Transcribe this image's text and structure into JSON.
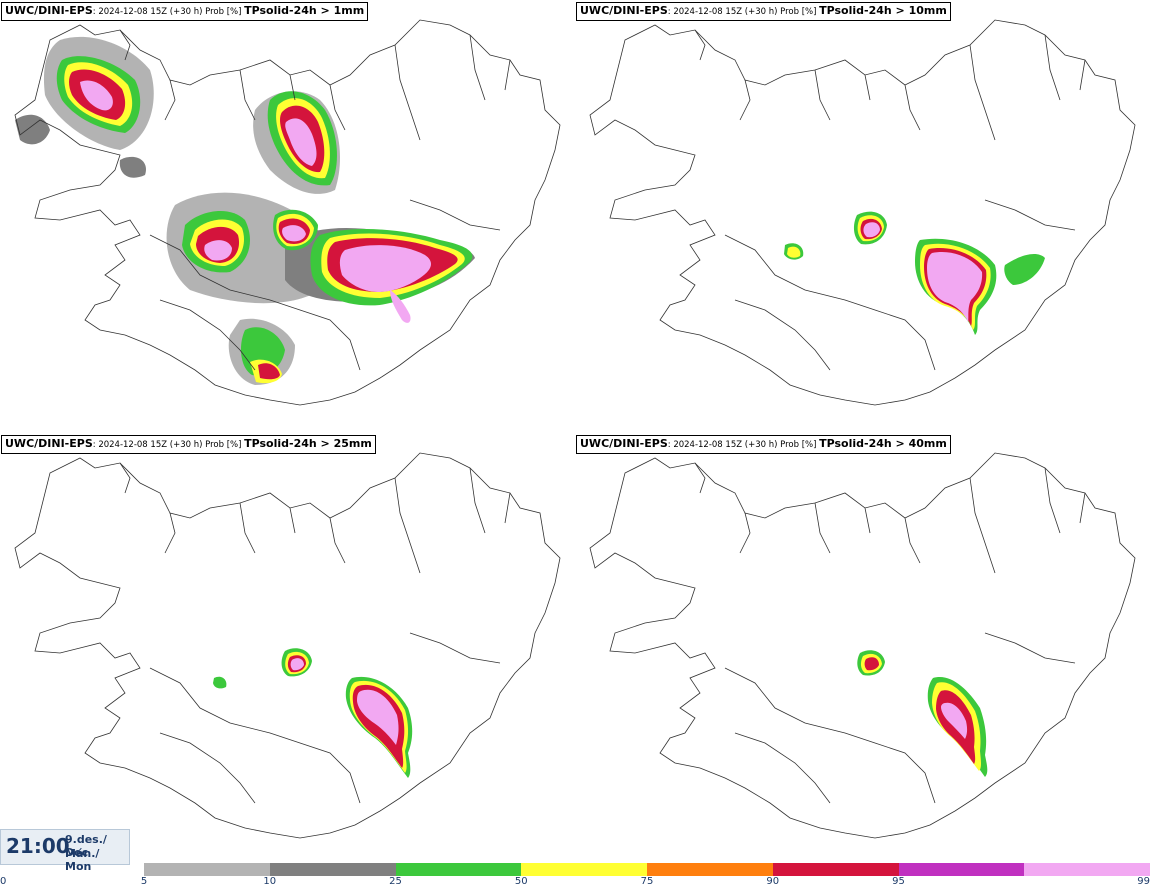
{
  "panels": [
    {
      "model": "UWC/DINI-EPS",
      "meta": ": 2024-12-08 15Z (+30 h) Prob [%] ",
      "field": "TPsolid-24h > 1mm"
    },
    {
      "model": "UWC/DINI-EPS",
      "meta": ": 2024-12-08 15Z (+30 h) Prob [%] ",
      "field": "TPsolid-24h > 10mm"
    },
    {
      "model": "UWC/DINI-EPS",
      "meta": ": 2024-12-08 15Z (+30 h) Prob [%] ",
      "field": "TPsolid-24h > 25mm"
    },
    {
      "model": "UWC/DINI-EPS",
      "meta": ": 2024-12-08 15Z (+30 h) Prob [%] ",
      "field": "TPsolid-24h > 40mm"
    }
  ],
  "valid_time": {
    "time": "21:00",
    "date_line1": "9.des./ Dec",
    "date_line2": "Mán./ Mon"
  },
  "legend": {
    "ticks": [
      "0",
      "5",
      "10",
      "25",
      "50",
      "75",
      "90",
      "95",
      "99"
    ],
    "colors": [
      "#b3b3b3",
      "#7f7f7f",
      "#3cc83c",
      "#ffff33",
      "#ff7f0e",
      "#d4143c",
      "#c030c0",
      "#f2a8f2"
    ]
  },
  "colors": {
    "pink": "#f2a8f2",
    "magenta": "#c030c0",
    "red": "#d4143c",
    "orange": "#ff7f0e",
    "yellow": "#ffff33",
    "green": "#3cc83c",
    "darkgray": "#7f7f7f",
    "lightgray": "#b3b3b3"
  }
}
